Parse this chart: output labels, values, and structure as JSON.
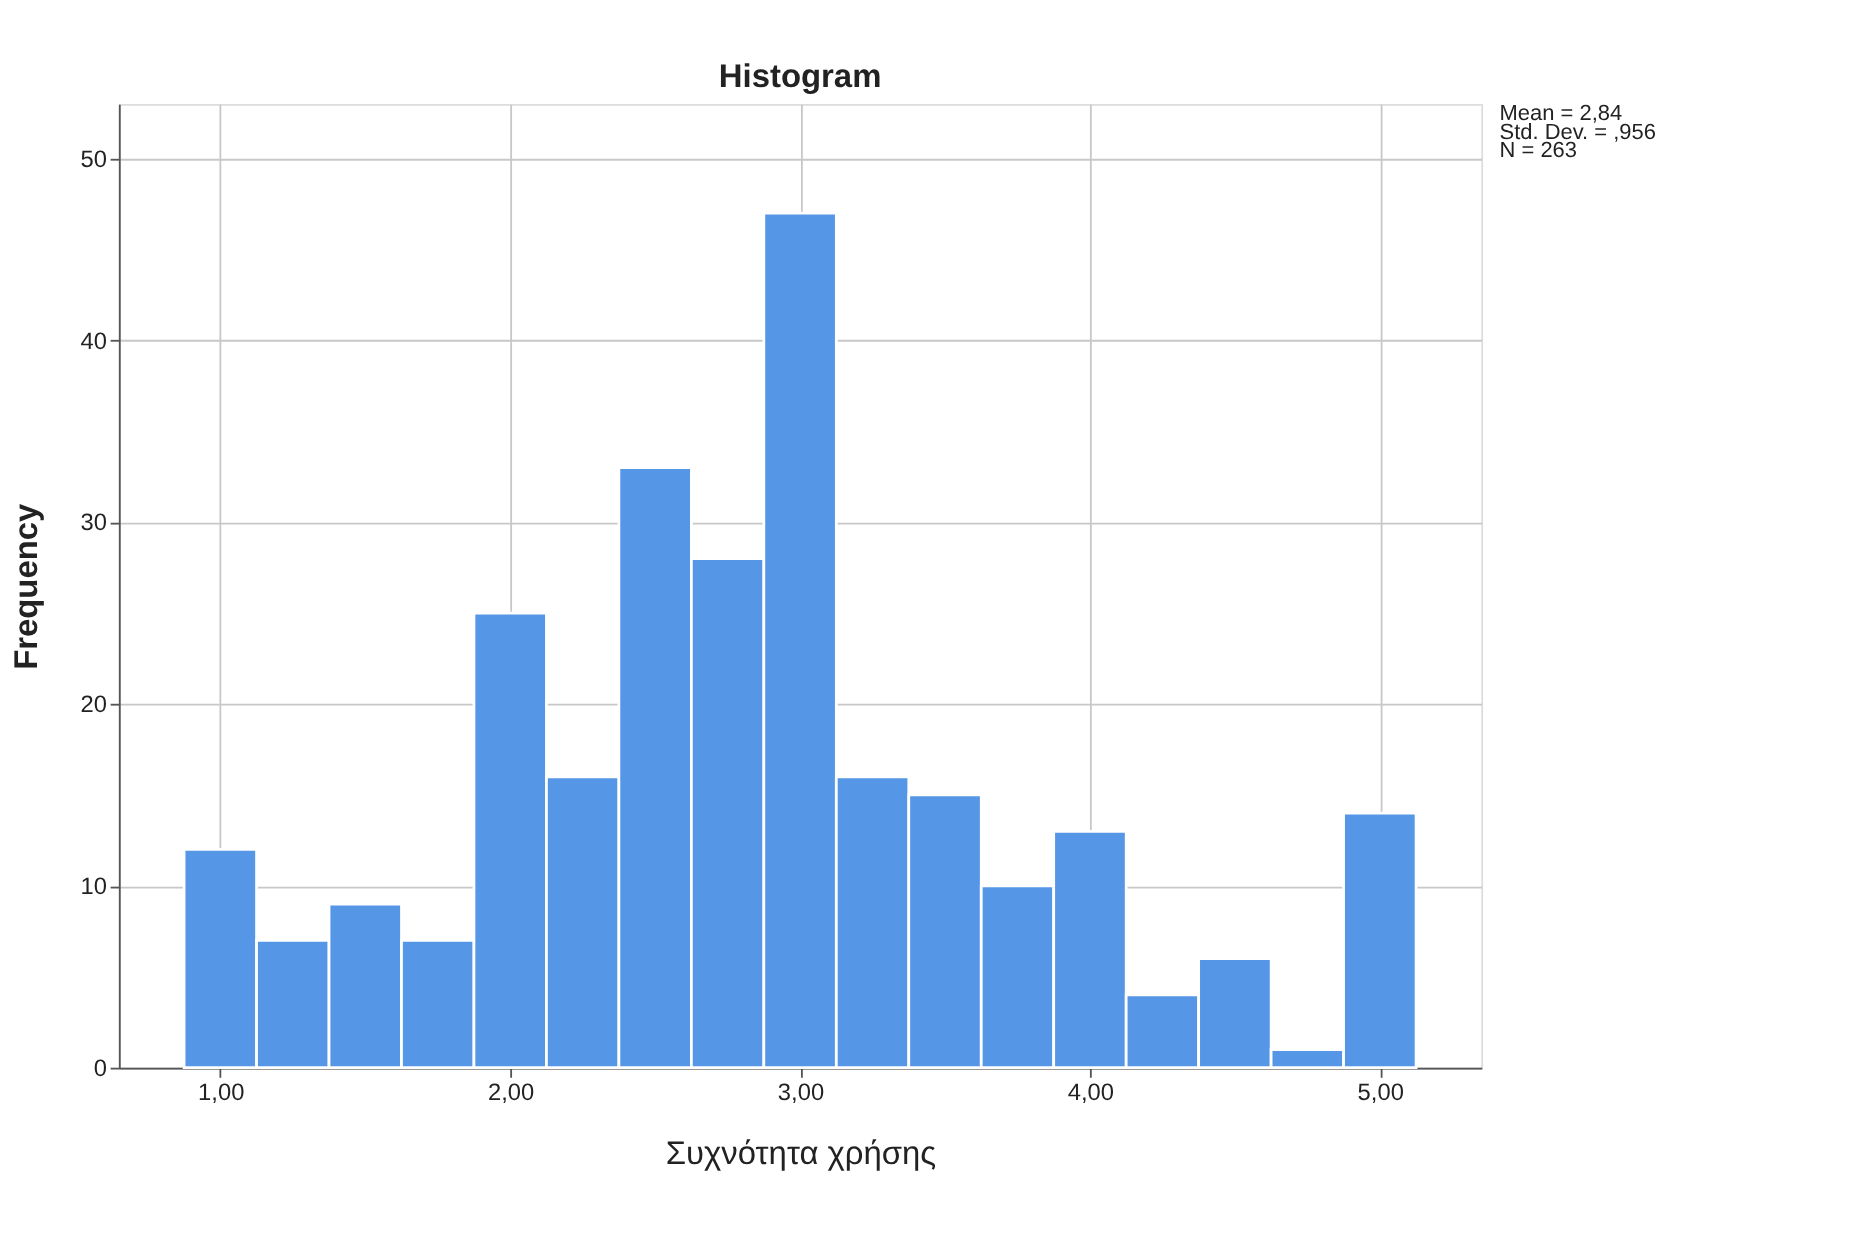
{
  "chart_data": {
    "type": "histogram",
    "title": "Histogram",
    "xlabel": "Συχνότητα χρήσης",
    "ylabel": "Frequency",
    "bins": [
      0.875,
      1.125,
      1.375,
      1.625,
      1.875,
      2.125,
      2.375,
      2.625,
      2.875,
      3.125,
      3.375,
      3.625,
      3.875,
      4.125,
      4.375,
      4.625,
      4.875,
      5.125
    ],
    "values": [
      12,
      7,
      9,
      7,
      25,
      16,
      33,
      28,
      47,
      16,
      15,
      10,
      13,
      4,
      6,
      1,
      14
    ],
    "color": "#5596e6",
    "xlim": [
      0.65,
      5.35
    ],
    "ylim": [
      0,
      53
    ],
    "xticks": [
      {
        "value": 1,
        "label": "1,00"
      },
      {
        "value": 2,
        "label": "2,00"
      },
      {
        "value": 3,
        "label": "3,00"
      },
      {
        "value": 4,
        "label": "4,00"
      },
      {
        "value": 5,
        "label": "5,00"
      }
    ],
    "yticks": [
      0,
      10,
      20,
      30,
      40,
      50
    ],
    "grid": true,
    "annotations": [
      "Mean = 2,84",
      "Std. Dev. = ,956",
      "N = 263"
    ]
  }
}
